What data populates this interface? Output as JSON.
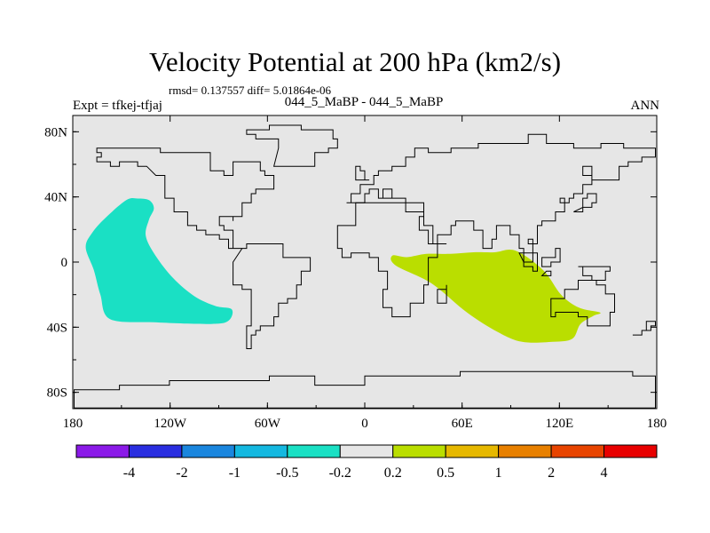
{
  "chart_data": {
    "type": "heatmap",
    "title": "Velocity Potential at 200 hPa (km2/s)",
    "stats_text": "rmsd= 0.137557  diff= 5.01864e-06",
    "left_label": "Expt = tfkej-tfjaj",
    "center_label": "044_5_MaBP - 044_5_MaBP",
    "right_label": "ANN",
    "xlim": [
      -180,
      180
    ],
    "ylim": [
      -90,
      90
    ],
    "x_ticks": [
      {
        "value": -180,
        "label": "180"
      },
      {
        "value": -120,
        "label": "120W"
      },
      {
        "value": -60,
        "label": "60W"
      },
      {
        "value": 0,
        "label": "0"
      },
      {
        "value": 60,
        "label": "60E"
      },
      {
        "value": 120,
        "label": "120E"
      },
      {
        "value": 180,
        "label": "180"
      }
    ],
    "y_ticks": [
      {
        "value": 80,
        "label": "80N"
      },
      {
        "value": 40,
        "label": "40N"
      },
      {
        "value": 0,
        "label": "0"
      },
      {
        "value": -40,
        "label": "40S"
      },
      {
        "value": -80,
        "label": "80S"
      }
    ],
    "background_color": "#e6e6e6",
    "colorbar": {
      "colors": [
        "#8b1ae8",
        "#2a2ee0",
        "#1a86de",
        "#14b8e0",
        "#1ae0c4",
        "#e6e6e6",
        "#bade00",
        "#e6b800",
        "#e88000",
        "#e84400",
        "#e80000"
      ],
      "labels": [
        "-4",
        "-2",
        "-1",
        "-0.5",
        "-0.2",
        "0.2",
        "0.5",
        "1",
        "2",
        "4"
      ]
    },
    "regions": [
      {
        "name": "negative-anomaly-region",
        "category_index": 4,
        "outline": [
          [
            -147,
            38
          ],
          [
            -140,
            39
          ],
          [
            -133,
            38
          ],
          [
            -130,
            33
          ],
          [
            -133,
            26
          ],
          [
            -135,
            16
          ],
          [
            -129,
            4
          ],
          [
            -118,
            -10
          ],
          [
            -105,
            -21
          ],
          [
            -92,
            -27
          ],
          [
            -82,
            -29
          ],
          [
            -84,
            -36
          ],
          [
            -95,
            -38
          ],
          [
            -130,
            -37
          ],
          [
            -157,
            -35
          ],
          [
            -163,
            -20
          ],
          [
            -167,
            -5
          ],
          [
            -172,
            9
          ],
          [
            -168,
            18
          ],
          [
            -160,
            27
          ]
        ]
      },
      {
        "name": "positive-anomaly-region",
        "category_index": 6,
        "outline": [
          [
            17,
            4
          ],
          [
            26,
            3
          ],
          [
            38,
            5
          ],
          [
            52,
            5
          ],
          [
            67,
            6
          ],
          [
            80,
            6
          ],
          [
            93,
            7
          ],
          [
            110,
            -5
          ],
          [
            121,
            -20
          ],
          [
            132,
            -28
          ],
          [
            145,
            -31
          ],
          [
            141,
            -33
          ],
          [
            133,
            -38
          ],
          [
            128,
            -47
          ],
          [
            116,
            -49
          ],
          [
            97,
            -49
          ],
          [
            82,
            -43
          ],
          [
            63,
            -31
          ],
          [
            41,
            -13
          ],
          [
            19,
            -2
          ]
        ]
      }
    ],
    "continent_outlines": [
      [
        [
          -130,
          54
        ],
        [
          -124,
          49
        ],
        [
          -124,
          40
        ],
        [
          -117,
          32
        ],
        [
          -110,
          23
        ],
        [
          -105,
          20
        ],
        [
          -97,
          16
        ],
        [
          -90,
          15
        ],
        [
          -83,
          9
        ],
        [
          -80,
          8
        ],
        [
          -77,
          8
        ],
        [
          -81,
          19
        ],
        [
          -88,
          21
        ],
        [
          -90,
          27
        ],
        [
          -82,
          25
        ],
        [
          -80,
          27
        ],
        [
          -76,
          35
        ],
        [
          -70,
          42
        ],
        [
          -66,
          44
        ],
        [
          -60,
          46
        ],
        [
          -55,
          52
        ],
        [
          -62,
          57
        ],
        [
          -65,
          61
        ],
        [
          -78,
          61
        ],
        [
          -80,
          53
        ],
        [
          -88,
          55
        ],
        [
          -94,
          59
        ],
        [
          -94,
          66
        ],
        [
          -110,
          68
        ],
        [
          -125,
          70
        ],
        [
          -141,
          70
        ],
        [
          -160,
          71
        ],
        [
          -165,
          67
        ],
        [
          -162,
          64
        ],
        [
          -166,
          61
        ],
        [
          -157,
          58
        ],
        [
          -150,
          61
        ],
        [
          -141,
          60
        ],
        [
          -135,
          58
        ]
      ],
      [
        [
          -77,
          8
        ],
        [
          -72,
          12
        ],
        [
          -62,
          10
        ],
        [
          -50,
          2
        ],
        [
          -35,
          -5
        ],
        [
          -39,
          -15
        ],
        [
          -42,
          -23
        ],
        [
          -48,
          -26
        ],
        [
          -53,
          -34
        ],
        [
          -57,
          -38
        ],
        [
          -65,
          -42
        ],
        [
          -67,
          -46
        ],
        [
          -69,
          -52
        ],
        [
          -73,
          -52
        ],
        [
          -74,
          -46
        ],
        [
          -72,
          -38
        ],
        [
          -71,
          -30
        ],
        [
          -70,
          -18
        ],
        [
          -76,
          -13
        ],
        [
          -81,
          -6
        ],
        [
          -80,
          1
        ]
      ],
      [
        [
          -17,
          21
        ],
        [
          -6,
          36
        ],
        [
          10,
          37
        ],
        [
          25,
          32
        ],
        [
          32,
          31
        ],
        [
          37,
          22
        ],
        [
          43,
          12
        ],
        [
          51,
          11
        ],
        [
          45,
          2
        ],
        [
          40,
          -5
        ],
        [
          40,
          -15
        ],
        [
          35,
          -25
        ],
        [
          27,
          -34
        ],
        [
          20,
          -35
        ],
        [
          18,
          -29
        ],
        [
          12,
          -18
        ],
        [
          13,
          -6
        ],
        [
          9,
          2
        ],
        [
          4,
          6
        ],
        [
          -8,
          4
        ],
        [
          -13,
          8
        ],
        [
          -17,
          14
        ]
      ],
      [
        [
          -10,
          36
        ],
        [
          -9,
          43
        ],
        [
          -2,
          46
        ],
        [
          -4,
          48
        ],
        [
          5,
          53
        ],
        [
          8,
          57
        ],
        [
          18,
          60
        ],
        [
          24,
          65
        ],
        [
          30,
          70
        ],
        [
          40,
          68
        ],
        [
          44,
          66
        ],
        [
          53,
          70
        ],
        [
          70,
          73
        ],
        [
          80,
          73
        ],
        [
          100,
          78
        ],
        [
          112,
          74
        ],
        [
          130,
          71
        ],
        [
          145,
          72
        ],
        [
          160,
          70
        ],
        [
          172,
          69
        ],
        [
          180,
          68
        ],
        [
          180,
          65
        ],
        [
          170,
          62
        ],
        [
          162,
          58
        ],
        [
          157,
          51
        ],
        [
          141,
          59
        ],
        [
          135,
          54
        ],
        [
          141,
          48
        ],
        [
          135,
          43
        ],
        [
          129,
          40
        ],
        [
          126,
          36
        ],
        [
          121,
          39
        ],
        [
          122,
          31
        ],
        [
          117,
          24
        ],
        [
          108,
          21
        ],
        [
          106,
          11
        ],
        [
          100,
          13
        ],
        [
          104,
          1
        ],
        [
          98,
          7
        ],
        [
          94,
          16
        ],
        [
          90,
          22
        ],
        [
          80,
          15
        ],
        [
          77,
          8
        ],
        [
          72,
          20
        ],
        [
          66,
          25
        ],
        [
          57,
          25
        ],
        [
          56,
          21
        ],
        [
          52,
          17
        ],
        [
          44,
          12
        ],
        [
          39,
          19
        ],
        [
          34,
          28
        ],
        [
          35,
          36
        ],
        [
          27,
          37
        ],
        [
          26,
          40
        ],
        [
          12,
          44
        ],
        [
          16,
          38
        ],
        [
          8,
          44
        ],
        [
          3,
          43
        ],
        [
          -1,
          37
        ]
      ],
      [
        [
          114,
          -22
        ],
        [
          123,
          -17
        ],
        [
          131,
          -11
        ],
        [
          136,
          -12
        ],
        [
          141,
          -11
        ],
        [
          143,
          -15
        ],
        [
          147,
          -19
        ],
        [
          153,
          -25
        ],
        [
          153,
          -32
        ],
        [
          150,
          -38
        ],
        [
          145,
          -39
        ],
        [
          140,
          -38
        ],
        [
          137,
          -35
        ],
        [
          131,
          -31
        ],
        [
          118,
          -35
        ],
        [
          115,
          -33
        ]
      ],
      [
        [
          -55,
          60
        ],
        [
          -45,
          60
        ],
        [
          -32,
          68
        ],
        [
          -22,
          70
        ],
        [
          -18,
          76
        ],
        [
          -20,
          82
        ],
        [
          -40,
          83
        ],
        [
          -60,
          82
        ],
        [
          -72,
          78
        ],
        [
          -68,
          76
        ],
        [
          -58,
          75
        ],
        [
          -52,
          70
        ]
      ],
      [
        [
          -180,
          -78
        ],
        [
          -150,
          -77
        ],
        [
          -120,
          -74
        ],
        [
          -80,
          -73
        ],
        [
          -60,
          -71
        ],
        [
          -30,
          -76
        ],
        [
          0,
          -70
        ],
        [
          30,
          -69
        ],
        [
          60,
          -67
        ],
        [
          90,
          -66
        ],
        [
          120,
          -66
        ],
        [
          150,
          -68
        ],
        [
          165,
          -71
        ],
        [
          180,
          -78
        ],
        [
          180,
          -90
        ],
        [
          -180,
          -90
        ]
      ],
      [
        [
          -6,
          50
        ],
        [
          2,
          51
        ],
        [
          0,
          55
        ],
        [
          -3,
          58
        ],
        [
          -5,
          58
        ],
        [
          -5,
          53
        ]
      ],
      [
        [
          130,
          32
        ],
        [
          135,
          34
        ],
        [
          140,
          36
        ],
        [
          142,
          41
        ],
        [
          138,
          38
        ],
        [
          133,
          33
        ]
      ],
      [
        [
          166,
          -46
        ],
        [
          172,
          -41
        ],
        [
          174,
          -37
        ],
        [
          178,
          -38
        ],
        [
          175,
          -42
        ],
        [
          170,
          -46
        ]
      ],
      [
        [
          44,
          -16
        ],
        [
          50,
          -15
        ],
        [
          49,
          -24
        ],
        [
          44,
          -25
        ]
      ],
      [
        [
          95,
          5
        ],
        [
          105,
          -6
        ],
        [
          104,
          -4
        ],
        [
          98,
          1
        ]
      ],
      [
        [
          110,
          -8
        ],
        [
          114,
          -8
        ],
        [
          114,
          -7
        ],
        [
          111,
          -6
        ]
      ],
      [
        [
          109,
          2
        ],
        [
          118,
          7
        ],
        [
          119,
          1
        ],
        [
          115,
          -4
        ],
        [
          110,
          -3
        ]
      ],
      [
        [
          131,
          -2
        ],
        [
          140,
          -3
        ],
        [
          150,
          -6
        ],
        [
          147,
          -10
        ],
        [
          141,
          -9
        ],
        [
          134,
          -4
        ]
      ]
    ]
  }
}
